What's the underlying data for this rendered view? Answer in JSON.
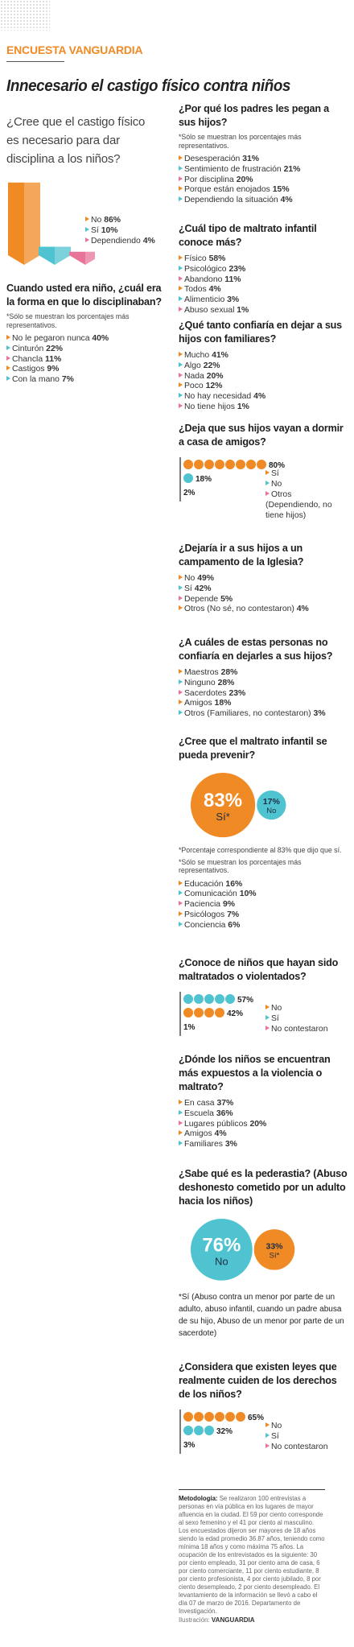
{
  "header": {
    "kicker": "ENCUESTA VANGUARDIA",
    "title": "Innecesario el castigo físico contra niños"
  },
  "sections": [
    {
      "question": "¿Cree que el castigo físico es necesario para dar disciplina a los niños?",
      "chart": {
        "type": "bars",
        "items": [
          {
            "label": "No",
            "value": 86,
            "value_label": "86%",
            "color": "#f08a24"
          },
          {
            "label": "Sí",
            "value": 10,
            "value_label": "10%",
            "color": "#4fc3d0"
          },
          {
            "label": "Dependiendo",
            "value": 4,
            "value_label": "4%",
            "color": "#e8749a"
          }
        ]
      }
    },
    {
      "question": "Cuando usted era niño, ¿cuál era la forma en que lo disciplinaban?",
      "note": "*Sólo se muestran los porcentajes más representativos.",
      "chart": {
        "type": "list",
        "items": [
          {
            "label": "No le pegaron nunca",
            "value": "40%"
          },
          {
            "label": "Cinturón",
            "value": "22%"
          },
          {
            "label": "Chancla",
            "value": "11%"
          },
          {
            "label": "Castigos",
            "value": "9%"
          },
          {
            "label": "Con la mano",
            "value": "7%"
          }
        ]
      }
    },
    {
      "question": "¿Por qué los padres les pegan a sus hijos?",
      "note": "*Sólo se muestran los porcentajes más representativos.",
      "chart": {
        "type": "list",
        "items": [
          {
            "label": "Desesperación",
            "value": "31%"
          },
          {
            "label": "Sentimiento de frustración",
            "value": "21%"
          },
          {
            "label": "Por disciplina",
            "value": "20%"
          },
          {
            "label": "Porque están enojados",
            "value": "15%"
          },
          {
            "label": "Dependiendo la situación",
            "value": "4%"
          }
        ]
      }
    },
    {
      "question": "¿Cuál tipo de maltrato infantil conoce más?",
      "chart": {
        "type": "list",
        "items": [
          {
            "label": "Físico",
            "value": "58%"
          },
          {
            "label": "Psicológico",
            "value": "23%"
          },
          {
            "label": "Abandono",
            "value": "11%"
          },
          {
            "label": "Todos",
            "value": "4%"
          },
          {
            "label": "Alimenticio",
            "value": "3%"
          },
          {
            "label": "Abuso sexual",
            "value": "1%"
          }
        ]
      }
    },
    {
      "question": "¿Qué tanto confiaría en dejar a sus hijos con familiares?",
      "chart": {
        "type": "list",
        "items": [
          {
            "label": "Mucho",
            "value": "41%"
          },
          {
            "label": "Algo",
            "value": "22%"
          },
          {
            "label": "Nada",
            "value": "20%"
          },
          {
            "label": "Poco",
            "value": "12%"
          },
          {
            "label": "No hay necesidad",
            "value": "4%"
          },
          {
            "label": "No tiene hijos",
            "value": "1%"
          }
        ]
      }
    },
    {
      "question": "¿Deja que sus hijos vayan a dormir a casa de amigos?",
      "chart": {
        "type": "dots",
        "items": [
          {
            "label": "Sí",
            "value": 80,
            "value_label": "80%",
            "color": "#f08a24"
          },
          {
            "label": "No",
            "value": 18,
            "value_label": "18%",
            "color": "#4fc3d0"
          },
          {
            "label": "Otros (Dependiendo, no tiene hijos)",
            "value": 2,
            "value_label": "2%",
            "color": "#e8749a"
          }
        ]
      }
    },
    {
      "question": "¿Dejaría ir a sus hijos a un campamento de la Iglesia?",
      "chart": {
        "type": "list",
        "items": [
          {
            "label": "No",
            "value": "49%"
          },
          {
            "label": "Sí",
            "value": "42%"
          },
          {
            "label": "Depende",
            "value": "5%"
          },
          {
            "label": "Otros (No sé, no contestaron)",
            "value": "4%"
          }
        ]
      }
    },
    {
      "question": "¿A cuáles de estas personas no confiaría en dejarles a sus hijos?",
      "chart": {
        "type": "list",
        "items": [
          {
            "label": "Maestros",
            "value": "28%"
          },
          {
            "label": "Ninguno",
            "value": "28%"
          },
          {
            "label": "Sacerdotes",
            "value": "23%"
          },
          {
            "label": "Amigos",
            "value": "18%"
          },
          {
            "label": "Otros (Familiares, no contestaron)",
            "value": "3%"
          }
        ]
      }
    },
    {
      "question": "¿Cree que el maltrato infantil se pueda prevenir?",
      "chart": {
        "type": "circles",
        "items": [
          {
            "label": "Sí*",
            "value": 83,
            "value_label": "83%",
            "color": "#f08a24"
          },
          {
            "label": "No",
            "value": 17,
            "value_label": "17%",
            "color": "#4fc3d0"
          }
        ]
      },
      "footnotes": [
        "*Porcentaje correspondiente al 83% que dijo que sí.",
        "*Sólo se muestran los porcentajes más representativos."
      ],
      "after": {
        "type": "list",
        "items": [
          {
            "label": "Educación",
            "value": "16%"
          },
          {
            "label": "Comunicación",
            "value": "10%"
          },
          {
            "label": "Paciencia",
            "value": "9%"
          },
          {
            "label": "Psicólogos",
            "value": "7%"
          },
          {
            "label": "Conciencia",
            "value": "6%"
          }
        ]
      }
    },
    {
      "question": "¿Conoce de niños que hayan sido maltratados o violentados?",
      "chart": {
        "type": "dots",
        "items": [
          {
            "label": "No",
            "value": 57,
            "value_label": "57%",
            "color": "#4fc3d0"
          },
          {
            "label": "Sí",
            "value": 42,
            "value_label": "42%",
            "color": "#f08a24"
          },
          {
            "label": "No contestaron",
            "value": 1,
            "value_label": "1%",
            "color": "#e8749a"
          }
        ]
      }
    },
    {
      "question": "¿Dónde los niños se encuentran más expuestos a la violencia o maltrato?",
      "chart": {
        "type": "list",
        "items": [
          {
            "label": "En casa",
            "value": "37%"
          },
          {
            "label": "Escuela",
            "value": "36%"
          },
          {
            "label": "Lugares públicos",
            "value": "20%"
          },
          {
            "label": "Amigos",
            "value": "4%"
          },
          {
            "label": "Familiares",
            "value": "3%"
          }
        ]
      }
    },
    {
      "question": "¿Sabe qué es la pederastia? (Abuso deshonesto cometido por un adulto hacia los niños)",
      "chart": {
        "type": "circles",
        "items": [
          {
            "label": "No",
            "value": 76,
            "value_label": "76%",
            "color": "#4fc3d0"
          },
          {
            "label": "Sí*",
            "value": 33,
            "value_label": "33%",
            "color": "#f08a24"
          }
        ]
      },
      "footnotes": [
        "*Sí (Abuso contra un menor por parte de un adulto, abuso infantil, cuando un padre abusa de su hijo, Abuso de un menor por parte de un sacerdote)"
      ]
    },
    {
      "question": "¿Considera que existen leyes que realmente cuiden de los derechos de los niños?",
      "chart": {
        "type": "dots",
        "items": [
          {
            "label": "No",
            "value": 65,
            "value_label": "65%",
            "color": "#f08a24"
          },
          {
            "label": "Sí",
            "value": 32,
            "value_label": "32%",
            "color": "#4fc3d0"
          },
          {
            "label": "No contestaron",
            "value": 3,
            "value_label": "3%",
            "color": "#e8749a"
          }
        ]
      }
    }
  ],
  "methodology": {
    "label": "Metodología:",
    "text": "Se realizaron 100 entrevistas a personas en vía pública en los lugares de mayor afluencia en la ciudad. El 59 por ciento corresponde al sexo femenino y el 41 por ciento al masculino. Los encuestados dijeron ser mayores de 18 años siendo la edad promedio 36.87 años, teniendo como mínima 18 años y como máxima 75 años. La ocupación de los entrevistados es la siguiente: 30 por ciento empleado, 31 por ciento ama de casa, 6 por ciento comerciante, 11 por ciento estudiante, 8 por ciento profesionista, 4 por ciento jubilado, 8 por ciento desempleado, 2 por ciento desempleado. El levantamiento de la información se llevó a cabo el día 07 de marzo de 2016. Departamento de Investigación."
  },
  "credit": {
    "label": "Ilustración:",
    "name": "VANGUARDIA"
  }
}
